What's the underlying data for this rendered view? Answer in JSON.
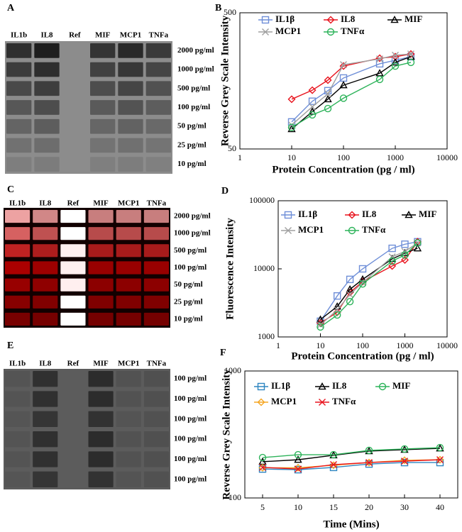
{
  "panels": [
    {
      "label": "A",
      "columns": [
        "IL1b",
        "IL8",
        "Ref",
        "MIF",
        "MCP1",
        "TNFa"
      ],
      "rows": [
        "2000 pg/ml",
        "1000 pg/ml",
        "500 pg/ml",
        "100 pg/ml",
        "50 pg/ml",
        "25 pg/ml",
        "10 pg/ml"
      ]
    },
    {
      "label": "C",
      "columns": [
        "IL1b",
        "IL8",
        "Ref",
        "MIF",
        "MCP1",
        "TNFa"
      ],
      "rows": [
        "2000 pg/ml",
        "1000 pg/ml",
        "500 pg/ml",
        "100 pg/ml",
        "50 pg/ml",
        "25 pg/ml",
        "10 pg/ml"
      ]
    },
    {
      "label": "E",
      "columns": [
        "IL1b",
        "IL8",
        "Ref",
        "MIF",
        "MCP1",
        "TNFa"
      ],
      "rows": [
        "100 pg/ml",
        "100 pg/ml",
        "100 pg/ml",
        "100 pg/ml",
        "100 pg/ml",
        "100 pg/ml"
      ]
    }
  ],
  "chart_data": [
    {
      "type": "line",
      "panel_label": "B",
      "x_label": "Protein Concentration (pg / ml)",
      "y_label": "Reverse Grey Scale Intensity",
      "log_x": true,
      "log_y": true,
      "xlim": [
        1,
        10000
      ],
      "xticks": [
        1,
        10,
        100,
        1000,
        10000
      ],
      "ylim": [
        50,
        500
      ],
      "yticks": [
        50,
        500
      ],
      "x": [
        10,
        25,
        50,
        100,
        500,
        1000,
        2000
      ],
      "series": [
        {
          "name": "IL1β",
          "color": "#6f8fd8",
          "marker": "square",
          "values": [
            79,
            112,
            134,
            166,
            211,
            224,
            238
          ]
        },
        {
          "name": "IL8",
          "color": "#e8141e",
          "marker": "diamond",
          "values": [
            116,
            135,
            160,
            203,
            232,
            238,
            249
          ]
        },
        {
          "name": "MIF",
          "color": "#000000",
          "marker": "triangle",
          "values": [
            70,
            94,
            116,
            147,
            180,
            216,
            238
          ]
        },
        {
          "name": "MCP1",
          "color": "#a0a0a0",
          "marker": "x",
          "values": [
            75,
            102,
            127,
            208,
            229,
            244,
            249
          ]
        },
        {
          "name": "TNFα",
          "color": "#2db35a",
          "marker": "circle",
          "values": [
            72,
            89,
            99,
            118,
            162,
            203,
            216
          ]
        }
      ]
    },
    {
      "type": "line",
      "panel_label": "D",
      "x_label": "Protein Concentration (pg / ml)",
      "y_label": "Fluorescence Intensity",
      "log_x": true,
      "log_y": true,
      "xlim": [
        1,
        10000
      ],
      "xticks": [
        1,
        10,
        100,
        1000,
        10000
      ],
      "ylim": [
        1000,
        100000
      ],
      "yticks": [
        1000,
        10000,
        100000
      ],
      "x": [
        10,
        25,
        50,
        100,
        500,
        1000,
        2000
      ],
      "series": [
        {
          "name": "IL1β",
          "color": "#6f8fd8",
          "marker": "square",
          "values": [
            1700,
            4000,
            7000,
            10000,
            20000,
            23000,
            25000
          ]
        },
        {
          "name": "IL8",
          "color": "#e8141e",
          "marker": "diamond",
          "values": [
            1600,
            2300,
            4500,
            6500,
            11000,
            13500,
            25000
          ]
        },
        {
          "name": "MIF",
          "color": "#000000",
          "marker": "triangle",
          "values": [
            1800,
            2800,
            5000,
            7000,
            14000,
            17000,
            20000
          ]
        },
        {
          "name": "MCP1",
          "color": "#a0a0a0",
          "marker": "x",
          "values": [
            1500,
            2500,
            4200,
            6300,
            15000,
            18000,
            24000
          ]
        },
        {
          "name": "TNFα",
          "color": "#2db35a",
          "marker": "circle",
          "values": [
            1400,
            2100,
            3300,
            6000,
            13000,
            16000,
            24000
          ]
        }
      ]
    },
    {
      "type": "line",
      "panel_label": "F",
      "x_label": "Time (Mins)",
      "y_label": "Reverse Grey Scale Intensity",
      "log_y": true,
      "ylim": [
        100,
        1000
      ],
      "yticks": [
        100,
        1000
      ],
      "categories": [
        "5",
        "10",
        "15",
        "20",
        "30",
        "40"
      ],
      "series": [
        {
          "name": "IL1β",
          "color": "#2e86c1",
          "marker": "square",
          "values": [
            169,
            167,
            174,
            185,
            190,
            190
          ]
        },
        {
          "name": "IL8",
          "color": "#000000",
          "marker": "triangle",
          "values": [
            193,
            200,
            217,
            234,
            240,
            246
          ]
        },
        {
          "name": "MIF",
          "color": "#2db35a",
          "marker": "circle",
          "values": [
            208,
            219,
            219,
            237,
            243,
            249
          ]
        },
        {
          "name": "MCP1",
          "color": "#f5a623",
          "marker": "diamond",
          "values": [
            173,
            173,
            181,
            190,
            198,
            200
          ]
        },
        {
          "name": "TNFα",
          "color": "#e8141e",
          "marker": "x",
          "values": [
            174,
            169,
            183,
            190,
            195,
            200
          ]
        }
      ]
    }
  ]
}
